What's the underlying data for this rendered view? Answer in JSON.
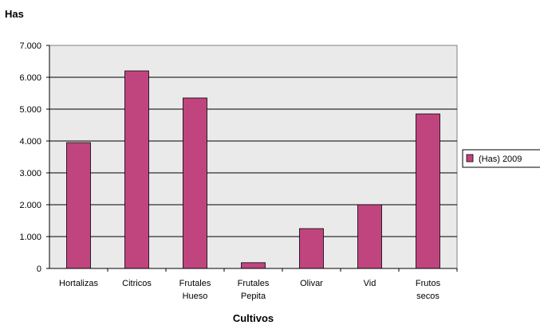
{
  "chart_data": {
    "type": "bar",
    "ylabel": "Has",
    "xlabel": "Cultivos",
    "categories": [
      [
        "Hortalizas"
      ],
      [
        "Citricos"
      ],
      [
        "Frutales",
        "Hueso"
      ],
      [
        "Frutales",
        "Pepita"
      ],
      [
        "Olivar"
      ],
      [
        "Vid"
      ],
      [
        "Frutos",
        "secos"
      ]
    ],
    "series": [
      {
        "name": "(Has) 2009",
        "color": "#c0457f",
        "values": [
          3950,
          6200,
          5350,
          180,
          1250,
          2000,
          4850
        ]
      }
    ],
    "ylim": [
      0,
      7000
    ],
    "yticks": [
      "0",
      "1.000",
      "2.000",
      "3.000",
      "4.000",
      "5.000",
      "6.000",
      "7.000"
    ],
    "grid": true,
    "legend_position": "right",
    "plot_background": "#eaeaea"
  }
}
